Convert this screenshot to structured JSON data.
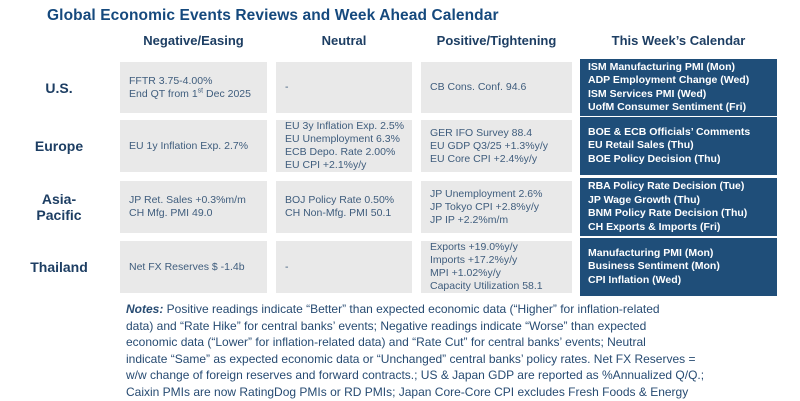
{
  "title": "Global Economic Events Reviews and Week Ahead Calendar",
  "columns": {
    "negative": "Negative/Easing",
    "neutral": "Neutral",
    "positive": "Positive/Tightening",
    "calendar": "This Week’s Calendar"
  },
  "colors": {
    "title_blue": "#15497d",
    "header_navy": "#1d3e63",
    "cell_text": "#3f5d7d",
    "cell_bg": "#e9e9e9",
    "calendar_bg": "#1f4e79",
    "calendar_text": "#ffffff"
  },
  "rows": [
    {
      "label": "U.S.",
      "negative": [
        "FFTR 3.75-4.00%"
      ],
      "negative_qt": {
        "pre": "End QT from 1",
        "sup": "st",
        "post": " Dec 2025"
      },
      "neutral": [
        "-"
      ],
      "positive": [
        "CB Cons. Conf. 94.6"
      ],
      "calendar": [
        "ISM Manufacturing PMI (Mon)",
        "ADP Employment Change (Wed)",
        "ISM Services PMI (Wed)",
        "UofM Consumer Sentiment (Fri)"
      ]
    },
    {
      "label": "Europe",
      "negative": [
        "EU 1y Inflation Exp. 2.7%"
      ],
      "neutral": [
        "EU 3y Inflation Exp. 2.5%",
        "EU Unemployment 6.3%",
        "ECB Depo. Rate 2.00%",
        "EU CPI +2.1%y/y"
      ],
      "positive": [
        "GER IFO Survey 88.4",
        "EU GDP Q3/25 +1.3%y/y",
        "EU Core CPI +2.4%y/y"
      ],
      "calendar": [
        "BOE & ECB Officials’ Comments",
        "EU Retail Sales (Thu)",
        "BOE Policy Decision (Thu)"
      ]
    },
    {
      "label": "Asia-Pacific",
      "negative": [
        "JP Ret. Sales +0.3%m/m",
        "CH Mfg. PMI 49.0"
      ],
      "neutral": [
        "BOJ Policy Rate 0.50%",
        "CH Non-Mfg. PMI 50.1"
      ],
      "positive": [
        "JP Unemployment 2.6%",
        "JP Tokyo CPI +2.8%y/y",
        "JP IP +2.2%m/m"
      ],
      "calendar": [
        "RBA Policy Rate Decision (Tue)",
        "JP Wage Growth (Thu)",
        "BNM Policy Rate Decision (Thu)",
        "CH Exports & Imports (Fri)"
      ]
    },
    {
      "label": "Thailand",
      "negative": [
        "Net FX Reserves $ -1.4b"
      ],
      "neutral": [
        "-"
      ],
      "positive": [
        "Exports +19.0%y/y",
        "Imports +17.2%y/y",
        "MPI +1.02%y/y",
        "Capacity Utilization 58.1"
      ],
      "calendar": [
        "Manufacturing PMI (Mon)",
        "Business Sentiment (Mon)",
        "CPI Inflation (Wed)"
      ]
    }
  ],
  "notes": {
    "label": "Notes:",
    "lines": [
      " Positive readings indicate “Better” than expected economic data (“Higher” for inflation-related",
      "data) and “Rate Hike” for central banks’ events; Negative readings indicate “Worse” than expected",
      "economic data (“Lower” for inflation-related data) and “Rate Cut” for central banks’ events; Neutral",
      "indicate “Same” as expected economic data or “Unchanged” central banks’ policy rates. Net FX Reserves =",
      "w/w change of foreign reserves and forward contracts.; US & Japan GDP are reported as %Annualized Q/Q.;",
      "Caixin PMIs are now RatingDog PMIs or RD PMIs; Japan Core-Core CPI excludes Fresh Foods & Energy"
    ]
  }
}
